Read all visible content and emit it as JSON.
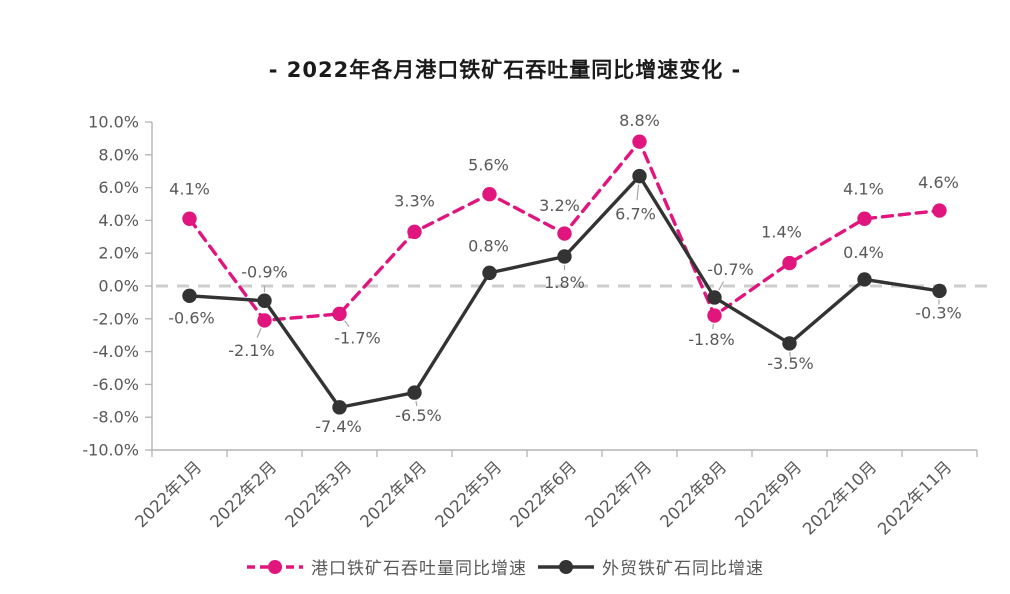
{
  "title": "- 2022年各月港口铁矿石吞吐量同比增速变化 -",
  "chart_data": {
    "type": "line",
    "title": "- 2022年各月港口铁矿石吞吐量同比增速变化 -",
    "categories": [
      "2022年1月",
      "2022年2月",
      "2022年3月",
      "2022年4月",
      "2022年5月",
      "2022年6月",
      "2022年7月",
      "2022年8月",
      "2022年9月",
      "2022年10月",
      "2022年11月"
    ],
    "series": [
      {
        "name": "港口铁矿石吞吐量同比增速",
        "color": "#e0157e",
        "line_style": "dashed",
        "marker": "circle",
        "values": [
          4.1,
          -2.1,
          -1.7,
          3.3,
          5.6,
          3.2,
          8.8,
          -1.8,
          1.4,
          4.1,
          4.6
        ],
        "labels": [
          "4.1%",
          "-2.1%",
          "-1.7%",
          "3.3%",
          "5.6%",
          "3.2%",
          "8.8%",
          "-1.8%",
          "1.4%",
          "4.1%",
          "4.6%"
        ],
        "label_offsets": [
          [
            0,
            -30
          ],
          [
            -13,
            30
          ],
          [
            18,
            24
          ],
          [
            0,
            -31
          ],
          [
            -1,
            -29
          ],
          [
            -5,
            -28
          ],
          [
            0,
            -21
          ],
          [
            -3,
            24
          ],
          [
            -8,
            -31
          ],
          [
            -1,
            -30
          ],
          [
            -1,
            -28
          ]
        ],
        "label_leaders": [
          false,
          true,
          true,
          false,
          false,
          false,
          false,
          true,
          false,
          false,
          false
        ]
      },
      {
        "name": "外贸铁矿石同比增速",
        "color": "#333333",
        "line_style": "solid",
        "marker": "circle",
        "values": [
          -0.6,
          -0.9,
          -7.4,
          -6.5,
          0.8,
          1.8,
          6.7,
          -0.7,
          -3.5,
          0.4,
          -0.3
        ],
        "labels": [
          "-0.6%",
          "-0.9%",
          "-7.4%",
          "-6.5%",
          "0.8%",
          "1.8%",
          "6.7%",
          "-0.7%",
          "-3.5%",
          "0.4%",
          "-0.3%"
        ],
        "label_offsets": [
          [
            2,
            22
          ],
          [
            0,
            -29
          ],
          [
            -1,
            19
          ],
          [
            4,
            23
          ],
          [
            -1,
            -27
          ],
          [
            0,
            26
          ],
          [
            -4,
            38
          ],
          [
            16,
            -28
          ],
          [
            1,
            20
          ],
          [
            -1,
            -27
          ],
          [
            -1,
            22
          ]
        ],
        "label_leaders": [
          false,
          true,
          false,
          true,
          false,
          true,
          true,
          true,
          true,
          false,
          true
        ]
      }
    ],
    "xlabel": "",
    "ylabel": "",
    "ylim": [
      -10,
      10
    ],
    "ytick_step": 2,
    "ytick_labels": [
      "10.0%",
      "8.0%",
      "6.0%",
      "4.0%",
      "2.0%",
      "0.0%",
      "-2.0%",
      "-4.0%",
      "-6.0%",
      "-8.0%",
      "-10.0%"
    ],
    "grid": "zero-line-only",
    "legend_position": "bottom",
    "style": {
      "background": "#ffffff",
      "title_color": "#1a1a1a",
      "axis_color": "#b3b3b3",
      "zero_line_color": "#cdcdcd",
      "tick_label_color": "#595959",
      "data_label_color": "#595959",
      "leader_color": "#a6a6a6"
    }
  }
}
